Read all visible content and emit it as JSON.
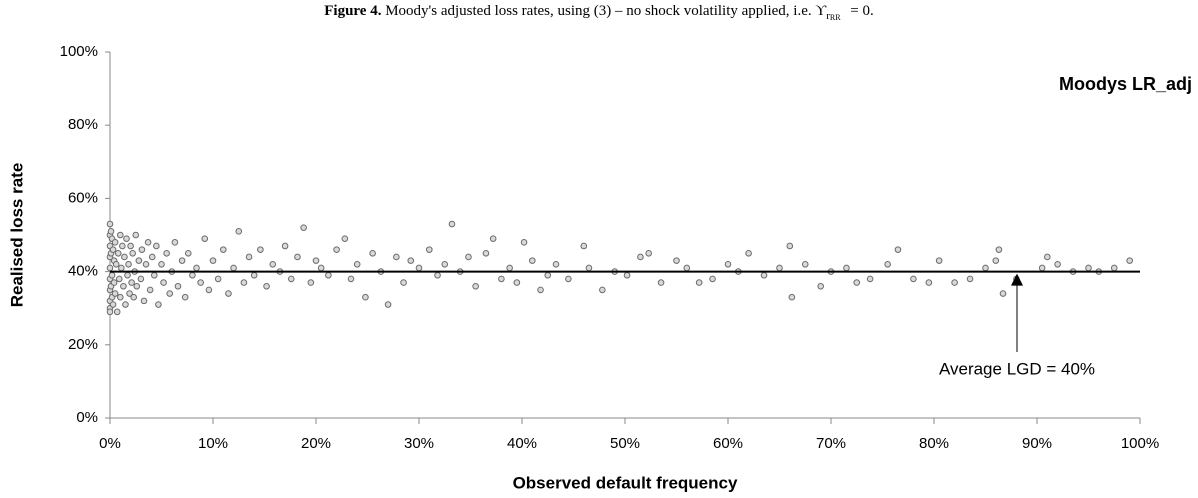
{
  "chart_data": {
    "type": "scatter",
    "title_prefix": "Figure 4.",
    "title": "Moody's adjusted loss rates, using (3) – no shock volatility applied, i.e. ϒ",
    "title_sub": "r",
    "title_subsub": "RR",
    "title_end": "= 0.",
    "series_label": "Moodys LR_adj",
    "annotation": "Average LGD = 40%",
    "average_line": 40,
    "x_label": "Observed default frequency",
    "y_label": "Realised loss rate",
    "xlim": [
      0,
      100
    ],
    "ylim": [
      0,
      100
    ],
    "xticks": [
      {
        "value": 0,
        "label": "0%"
      },
      {
        "value": 10,
        "label": "10%"
      },
      {
        "value": 20,
        "label": "20%"
      },
      {
        "value": 30,
        "label": "30%"
      },
      {
        "value": 40,
        "label": "40%"
      },
      {
        "value": 50,
        "label": "50%"
      },
      {
        "value": 60,
        "label": "60%"
      },
      {
        "value": 70,
        "label": "70%"
      },
      {
        "value": 80,
        "label": "80%"
      },
      {
        "value": 90,
        "label": "90%"
      },
      {
        "value": 100,
        "label": "100%"
      }
    ],
    "yticks": [
      {
        "value": 0,
        "label": "0%"
      },
      {
        "value": 20,
        "label": "20%"
      },
      {
        "value": 40,
        "label": "40%"
      },
      {
        "value": 60,
        "label": "60%"
      },
      {
        "value": 80,
        "label": "80%"
      },
      {
        "value": 100,
        "label": "100%"
      }
    ],
    "color": "#6b6b6b",
    "x": [
      0,
      0,
      0,
      0,
      0,
      0,
      0,
      0,
      0,
      0,
      0.1,
      0.1,
      0.1,
      0.2,
      0.2,
      0.2,
      0.3,
      0.3,
      0.4,
      0.4,
      0.5,
      0.5,
      0.6,
      0.7,
      0.8,
      0.9,
      1.0,
      1.0,
      1.1,
      1.2,
      1.3,
      1.4,
      1.5,
      1.6,
      1.7,
      1.8,
      1.9,
      2.0,
      2.1,
      2.2,
      2.3,
      2.4,
      2.5,
      2.6,
      2.8,
      3.0,
      3.1,
      3.3,
      3.5,
      3.7,
      3.9,
      4.1,
      4.3,
      4.5,
      4.7,
      5.0,
      5.2,
      5.5,
      5.8,
      6.0,
      6.3,
      6.6,
      7.0,
      7.3,
      7.6,
      8.0,
      8.4,
      8.8,
      9.2,
      9.6,
      10.0,
      10.5,
      11.0,
      11.5,
      12.0,
      12.5,
      13.0,
      13.5,
      14.0,
      14.6,
      15.2,
      15.8,
      16.5,
      17.0,
      17.6,
      18.2,
      18.8,
      19.5,
      20.0,
      20.5,
      21.2,
      22.0,
      22.8,
      23.4,
      24.0,
      24.8,
      25.5,
      26.3,
      27.0,
      27.8,
      28.5,
      29.2,
      30.0,
      31.0,
      31.8,
      32.5,
      33.2,
      34.0,
      34.8,
      35.5,
      36.5,
      37.2,
      38.0,
      38.8,
      39.5,
      40.2,
      41.0,
      41.8,
      42.5,
      43.3,
      44.5,
      46.0,
      46.5,
      47.8,
      49.0,
      50.2,
      51.5,
      52.3,
      53.5,
      55.0,
      56.0,
      57.2,
      58.5,
      60.0,
      61.0,
      62.0,
      63.5,
      65.0,
      66.0,
      66.2,
      67.5,
      69.0,
      70.0,
      71.5,
      72.5,
      73.8,
      75.5,
      76.5,
      78.0,
      79.5,
      80.5,
      82.0,
      83.5,
      85.0,
      86.0,
      86.3,
      86.7,
      88.0,
      90.5,
      91.0,
      92.0,
      93.5,
      95.0,
      96.0,
      97.5,
      99.0
    ],
    "values": [
      53,
      50,
      47,
      44,
      41,
      38,
      35,
      32,
      30,
      29,
      51,
      45,
      36,
      49,
      39,
      33,
      46,
      31,
      43,
      37,
      48,
      34,
      42,
      29,
      45,
      38,
      50,
      33,
      41,
      47,
      36,
      44,
      31,
      49,
      39,
      42,
      34,
      47,
      37,
      45,
      33,
      40,
      50,
      36,
      43,
      38,
      46,
      32,
      42,
      48,
      35,
      44,
      39,
      47,
      31,
      42,
      37,
      45,
      34,
      40,
      48,
      36,
      43,
      33,
      45,
      39,
      41,
      37,
      49,
      35,
      43,
      38,
      46,
      34,
      41,
      51,
      37,
      44,
      39,
      46,
      36,
      42,
      40,
      47,
      38,
      44,
      52,
      37,
      43,
      41,
      39,
      46,
      49,
      38,
      42,
      33,
      45,
      40,
      31,
      44,
      37,
      43,
      41,
      46,
      39,
      42,
      53,
      40,
      44,
      36,
      45,
      49,
      38,
      41,
      37,
      48,
      43,
      35,
      39,
      42,
      38,
      47,
      41,
      35,
      40,
      39,
      44,
      45,
      37,
      43,
      41,
      37,
      38,
      42,
      40,
      45,
      39,
      41,
      47,
      33,
      42,
      36,
      40,
      41,
      37,
      38,
      42,
      46,
      38,
      37,
      43,
      37,
      38,
      41,
      43,
      46,
      34,
      38,
      41,
      44,
      42,
      40,
      41,
      40,
      41,
      43
    ]
  }
}
